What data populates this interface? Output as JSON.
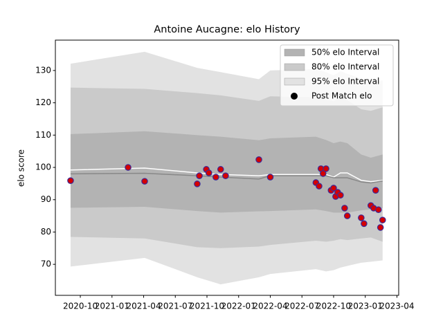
{
  "chart_data": {
    "type": "interval",
    "title": "Antoine Aucagne: elo History",
    "y_label": "elo score",
    "x": [
      2020.673,
      2021.258,
      2021.673,
      2021.858,
      2022.16,
      2022.25,
      2022.61,
      2022.69,
      2022.75,
      2022.804,
      2022.858,
      2022.968,
      2023.044,
      2023.137
    ],
    "bands": [
      {
        "name": "95% elo Interval",
        "color": "#e2e2e2",
        "upper": [
          132.1,
          135.8,
          130.8,
          129.5,
          127.3,
          130,
          130.5,
          129.5,
          128.5,
          129.8,
          129,
          127.5,
          125.7,
          127
        ],
        "lower": [
          69.3,
          72,
          66,
          63.8,
          66,
          67,
          68.5,
          67.8,
          68.2,
          69,
          69.5,
          70.5,
          70.8,
          71.2
        ]
      },
      {
        "name": "80% elo Interval",
        "color": "#cacaca",
        "upper": [
          124.7,
          124.3,
          123,
          122.3,
          120.6,
          122,
          121.7,
          121,
          120.5,
          121.5,
          120.8,
          118,
          117.5,
          118.6
        ],
        "lower": [
          78.5,
          78,
          75.3,
          75,
          75.5,
          76,
          77.3,
          77,
          77.3,
          77.8,
          77.5,
          78,
          78.3,
          77
        ]
      },
      {
        "name": "50% elo Interval",
        "color": "#b3b3b3",
        "upper": [
          110.3,
          111.2,
          110,
          109.5,
          108.4,
          109,
          109.5,
          108.5,
          107.5,
          108,
          107.5,
          104,
          103,
          104
        ],
        "lower": [
          87.5,
          87.8,
          86.5,
          86,
          86.4,
          86.5,
          87,
          86.5,
          86,
          86,
          86,
          86.7,
          87,
          87.4
        ]
      }
    ],
    "lines": [
      {
        "color": "#ffffff",
        "values": [
          99.2,
          99.8,
          98.3,
          97.8,
          97.4,
          97.8,
          97.8,
          97.8,
          97.0,
          98.3,
          98.3,
          96.0,
          95.6,
          96.0
        ]
      },
      {
        "color": "#888888",
        "values": [
          98.0,
          98.2,
          97.4,
          97.0,
          96.4,
          97.4,
          97.4,
          97.4,
          96.8,
          96.8,
          96.8,
          95.5,
          95.2,
          95.8
        ]
      }
    ],
    "points": {
      "name": "Post Match elo",
      "color": "#d40000",
      "edgecolor": "#3b2b9b",
      "x": [
        2020.673,
        2021.127,
        2021.258,
        2021.673,
        2021.69,
        2021.745,
        2021.765,
        2021.82,
        2021.858,
        2021.897,
        2022.16,
        2022.25,
        2022.61,
        2022.635,
        2022.65,
        2022.667,
        2022.69,
        2022.73,
        2022.75,
        2022.766,
        2022.782,
        2022.804,
        2022.837,
        2022.858,
        2022.968,
        2022.99,
        2023.044,
        2023.066,
        2023.082,
        2023.104,
        2023.12,
        2023.137
      ],
      "values": [
        95.9,
        100.0,
        95.7,
        94.9,
        97.4,
        99.4,
        98.3,
        97.0,
        99.4,
        97.4,
        102.4,
        97.0,
        95.3,
        94.2,
        99.6,
        98.1,
        99.6,
        92.9,
        93.6,
        91.0,
        92.3,
        91.4,
        87.4,
        85.0,
        84.4,
        82.6,
        88.2,
        87.4,
        92.9,
        86.9,
        81.4,
        83.7
      ]
    },
    "xlim": [
      2020.553,
      2023.264
    ],
    "ylim": [
      60.4,
      139.4
    ],
    "xticks": [
      {
        "value": 2020.75,
        "label": "2020-10"
      },
      {
        "value": 2021.0,
        "label": "2021-01"
      },
      {
        "value": 2021.25,
        "label": "2021-04"
      },
      {
        "value": 2021.5,
        "label": "2021-07"
      },
      {
        "value": 2021.75,
        "label": "2021-10"
      },
      {
        "value": 2022.0,
        "label": "2022-01"
      },
      {
        "value": 2022.25,
        "label": "2022-04"
      },
      {
        "value": 2022.5,
        "label": "2022-07"
      },
      {
        "value": 2022.75,
        "label": "2022-10"
      },
      {
        "value": 2023.0,
        "label": "2023-01"
      },
      {
        "value": 2023.25,
        "label": "2023-04"
      }
    ],
    "yticks": [
      70,
      80,
      90,
      100,
      110,
      120,
      130
    ],
    "legend": "upper right"
  }
}
